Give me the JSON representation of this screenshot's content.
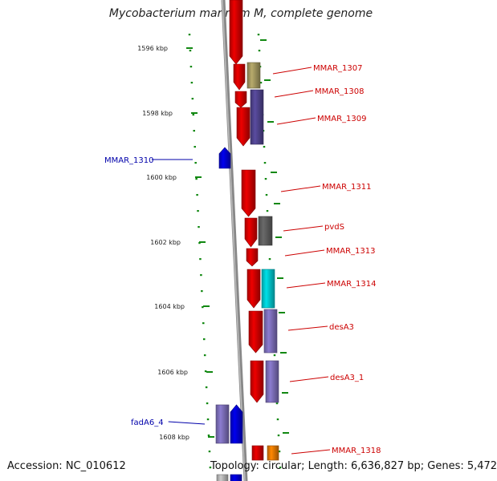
{
  "title": "Mycobacterium marinum M, complete genome",
  "footer": {
    "accession": "Accession: NC_010612",
    "topology": "Topology: circular; Length: 6,636,827 bp; Genes: 5,472"
  },
  "colors": {
    "reverse_gene": "#ee0000",
    "forward_gene": "#0000ee",
    "backbone": "#888888",
    "tick": "#118811",
    "label_reverse": "#cc0000",
    "label_forward": "#0000aa",
    "tan": "#b8ab6c",
    "purple": "#5a4ca0",
    "gray": "#6a6a6a",
    "cyan": "#00e0e8",
    "lavender": "#8c7cd0",
    "orange": "#ff8800",
    "light_gray": "#cccccc"
  },
  "axis_labels": [
    "1596 kbp",
    "1598 kbp",
    "1600 kbp",
    "1602 kbp",
    "1604 kbp",
    "1606 kbp",
    "1608 kbp"
  ],
  "genes": [
    {
      "name": "MMAR_1307",
      "strand": "reverse"
    },
    {
      "name": "MMAR_1308",
      "strand": "reverse"
    },
    {
      "name": "MMAR_1309",
      "strand": "reverse"
    },
    {
      "name": "MMAR_1310",
      "strand": "forward"
    },
    {
      "name": "MMAR_1311",
      "strand": "reverse"
    },
    {
      "name": "pvdS",
      "strand": "reverse"
    },
    {
      "name": "MMAR_1313",
      "strand": "reverse"
    },
    {
      "name": "MMAR_1314",
      "strand": "reverse"
    },
    {
      "name": "desA3",
      "strand": "reverse"
    },
    {
      "name": "desA3_1",
      "strand": "reverse"
    },
    {
      "name": "fadA6_4",
      "strand": "forward"
    },
    {
      "name": "MMAR_1318",
      "strand": "reverse"
    }
  ]
}
